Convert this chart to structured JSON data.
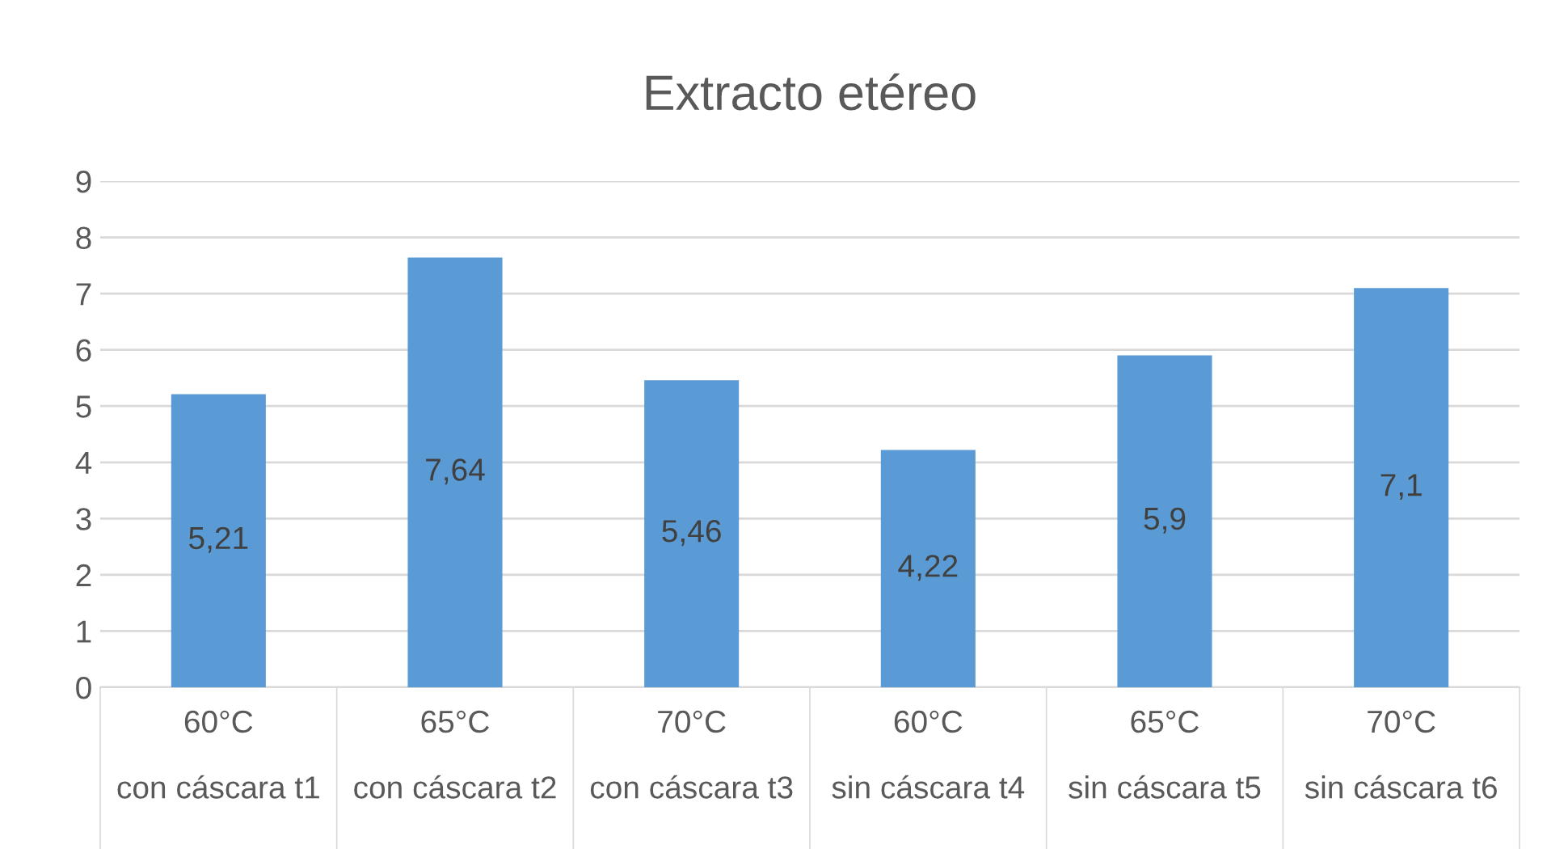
{
  "chart_data": {
    "type": "bar",
    "title": "Extracto etéreo",
    "categories": [
      "60°C\ncon cáscara t1",
      "65°C\ncon cáscara t2",
      "70°C\ncon cáscara t3",
      "60°C\nsin cáscara t4",
      "65°C\nsin cáscara t5",
      "70°C\nsin cáscara t6"
    ],
    "values": [
      5.21,
      7.64,
      5.46,
      4.22,
      5.9,
      7.1
    ],
    "value_labels": [
      "5,21",
      "7,64",
      "5,46",
      "4,22",
      "5,9",
      "7,1"
    ],
    "color": "#5b9bd5",
    "ylim": [
      0,
      9
    ],
    "yticks": [
      0,
      1,
      2,
      3,
      4,
      5,
      6,
      7,
      8,
      9
    ],
    "grid": "y"
  }
}
